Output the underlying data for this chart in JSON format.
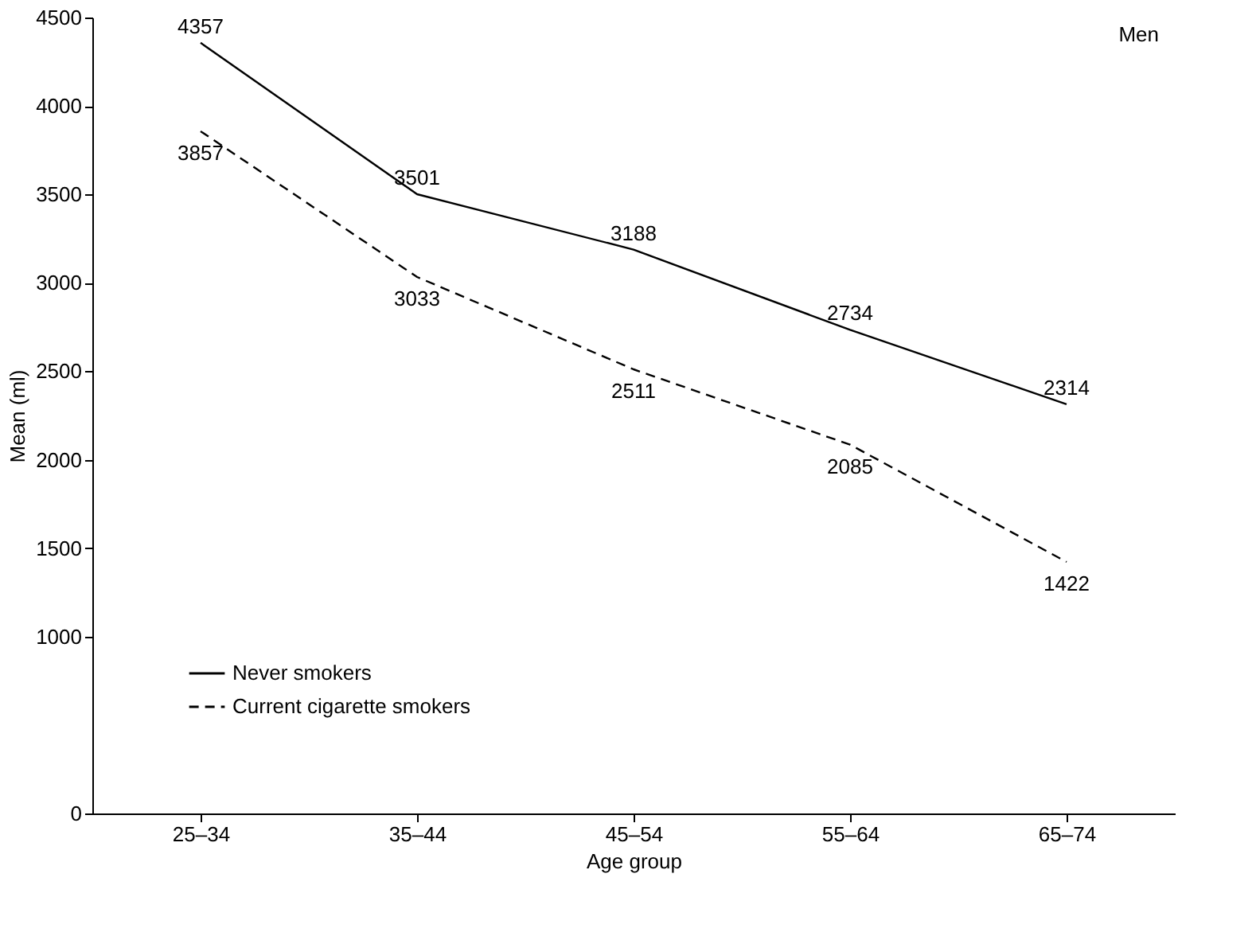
{
  "chart_data": {
    "type": "line",
    "xlabel": "Age group",
    "ylabel": "Mean (ml)",
    "annotations": [
      "Men"
    ],
    "categories": [
      "25–34",
      "35–44",
      "45–54",
      "55–64",
      "65–74"
    ],
    "series": [
      {
        "name": "Never smokers",
        "color": "#000000",
        "line_style": "solid",
        "values": [
          4357,
          3501,
          3188,
          2734,
          2314
        ]
      },
      {
        "name": "Current cigarette smokers",
        "color": "#000000",
        "line_style": "dashed",
        "values": [
          3857,
          3033,
          2511,
          2085,
          1422
        ]
      }
    ],
    "ylim": [
      0,
      4500
    ],
    "yticks": [
      0,
      1000,
      1500,
      2000,
      2500,
      3000,
      3500,
      4000,
      4500
    ],
    "data_labels": true,
    "grid": false,
    "legend": "bottom left",
    "marker": "none"
  }
}
